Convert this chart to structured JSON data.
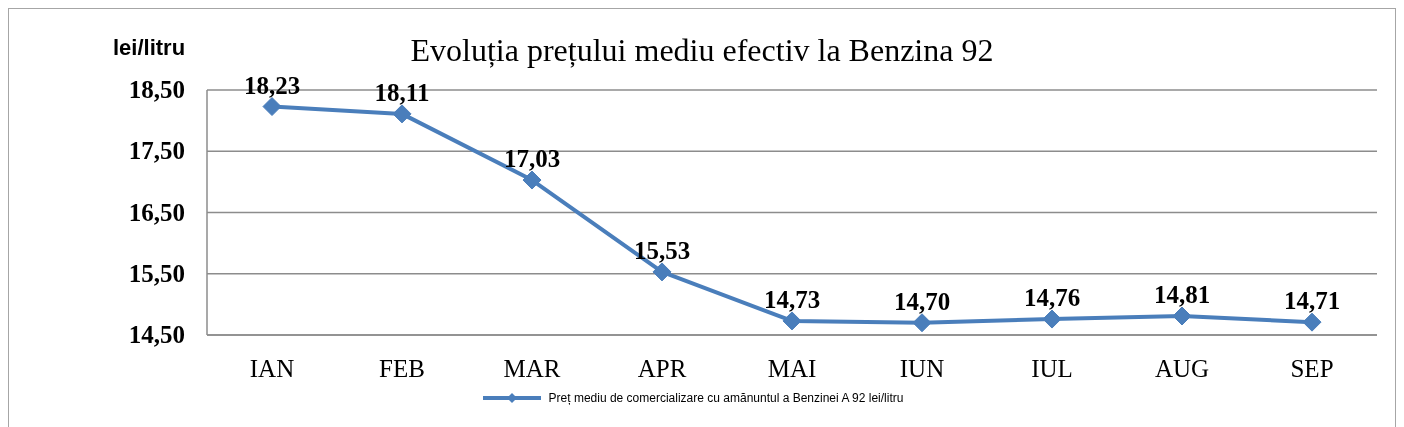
{
  "chart_data": {
    "type": "line",
    "title": "Evoluția prețului mediu efectiv la Benzina 92",
    "ylabel": "lei/litru",
    "categories": [
      "IAN",
      "FEB",
      "MAR",
      "APR",
      "MAI",
      "IUN",
      "IUL",
      "AUG",
      "SEP"
    ],
    "series": [
      {
        "name": "Preț mediu de comercializare cu amănuntul a Benzinei A 92 lei/litru",
        "color": "#4a7ebb",
        "values": [
          18.23,
          18.11,
          17.03,
          15.53,
          14.73,
          14.7,
          14.76,
          14.81,
          14.71
        ],
        "value_labels": [
          "18,23",
          "18,11",
          "17,03",
          "15,53",
          "14,73",
          "14,70",
          "14,76",
          "14,81",
          "14,71"
        ]
      }
    ],
    "ylim": [
      14.5,
      18.5
    ],
    "yticks": [
      {
        "value": 14.5,
        "label": "14,50"
      },
      {
        "value": 15.5,
        "label": "15,50"
      },
      {
        "value": 16.5,
        "label": "16,50"
      },
      {
        "value": 17.5,
        "label": "17,50"
      },
      {
        "value": 18.5,
        "label": "18,50"
      }
    ],
    "grid": "y",
    "legend": "bottom",
    "marker": "diamond",
    "line_style": "solid"
  }
}
